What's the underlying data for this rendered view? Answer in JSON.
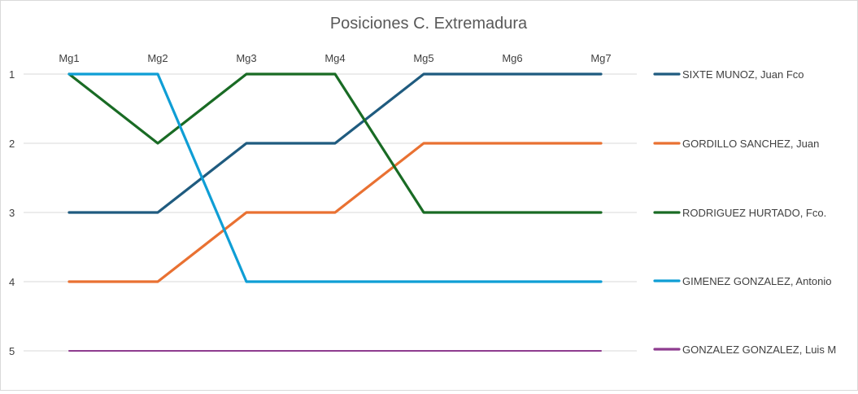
{
  "chart_data": {
    "type": "line",
    "title": "Posiciones C. Extremadura",
    "xlabel": "",
    "ylabel": "",
    "categories": [
      "Mg1",
      "Mg2",
      "Mg3",
      "Mg4",
      "Mg5",
      "Mg6",
      "Mg7"
    ],
    "y_ticks": [
      "1",
      "2",
      "3",
      "4",
      "5"
    ],
    "ylim": [
      1,
      5
    ],
    "y_inverted": true,
    "grid": true,
    "legend_position": "right",
    "series": [
      {
        "name": "SIXTE MUNOZ, Juan Fco",
        "color": "#1f5b7f",
        "values": [
          3,
          3,
          2,
          2,
          1,
          1,
          1
        ]
      },
      {
        "name": "GORDILLO SANCHEZ, Juan",
        "color": "#e97132",
        "values": [
          4,
          4,
          3,
          3,
          2,
          2,
          2
        ]
      },
      {
        "name": "RODRIGUEZ HURTADO, Fco.",
        "color": "#196b24",
        "values": [
          1,
          2,
          1,
          1,
          3,
          3,
          3
        ]
      },
      {
        "name": "GIMENEZ GONZALEZ, Antonio",
        "color": "#0f9ed5",
        "values": [
          1,
          1,
          4,
          4,
          4,
          4,
          4
        ]
      },
      {
        "name": "GONZALEZ GONZALEZ, Luis M",
        "color": "#8e3c8f",
        "values": [
          5,
          5,
          5,
          5,
          5,
          5,
          5
        ]
      }
    ]
  }
}
